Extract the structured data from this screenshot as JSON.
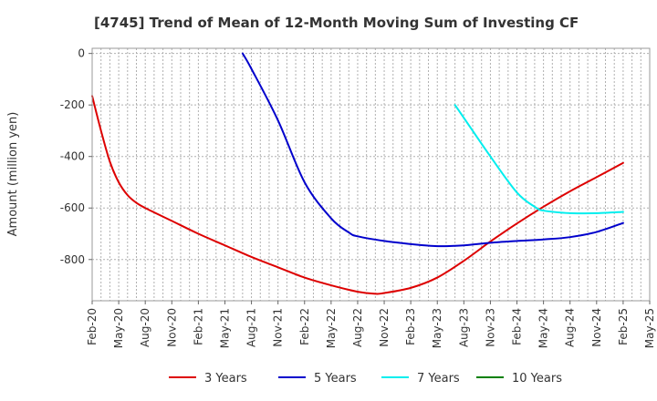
{
  "chart_data": {
    "type": "line",
    "title": "[4745]  Trend of Mean of 12-Month Moving Sum of Investing CF",
    "ylabel": "Amount (million yen)",
    "xlabel": "",
    "ylim": [
      -960,
      20
    ],
    "yticks": [
      0,
      -200,
      -400,
      -600,
      -800
    ],
    "ytick_labels": [
      "0",
      "-200",
      "-400",
      "-600",
      "-800"
    ],
    "x_start": "Feb-20",
    "x_end": "May-25",
    "xtick_labels": [
      "Feb-20",
      "May-20",
      "Aug-20",
      "Nov-20",
      "Feb-21",
      "May-21",
      "Aug-21",
      "Nov-21",
      "Feb-22",
      "May-22",
      "Aug-22",
      "Nov-22",
      "Feb-23",
      "May-23",
      "Aug-23",
      "Nov-23",
      "Feb-24",
      "May-24",
      "Aug-24",
      "Nov-24",
      "Feb-25",
      "May-25"
    ],
    "grid": true,
    "legend_position": "bottom",
    "series": [
      {
        "name": "3 Years",
        "color": "#dd0000",
        "x": [
          "Feb-20",
          "Mar-20",
          "Apr-20",
          "May-20",
          "Jun-20",
          "Jul-20",
          "Aug-20",
          "Nov-20",
          "Feb-21",
          "May-21",
          "Aug-21",
          "Nov-21",
          "Feb-22",
          "May-22",
          "Aug-22",
          "Oct-22",
          "Nov-22",
          "Feb-23",
          "May-23",
          "Aug-23",
          "Nov-23",
          "Feb-24",
          "May-24",
          "Aug-24",
          "Nov-24",
          "Feb-25"
        ],
        "values": [
          -165,
          -300,
          -420,
          -500,
          -550,
          -580,
          -600,
          -650,
          -700,
          -745,
          -790,
          -830,
          -870,
          -900,
          -925,
          -933,
          -930,
          -910,
          -870,
          -805,
          -730,
          -660,
          -595,
          -535,
          -480,
          -425
        ]
      },
      {
        "name": "5 Years",
        "color": "#0000cc",
        "x": [
          "Jul-21",
          "Aug-21",
          "Nov-21",
          "Feb-22",
          "May-22",
          "Jul-22",
          "Aug-22",
          "Nov-22",
          "Feb-23",
          "May-23",
          "Aug-23",
          "Nov-23",
          "Feb-24",
          "May-24",
          "Aug-24",
          "Nov-24",
          "Feb-25"
        ],
        "values": [
          0,
          -60,
          -260,
          -500,
          -640,
          -695,
          -710,
          -728,
          -740,
          -748,
          -745,
          -735,
          -728,
          -722,
          -713,
          -693,
          -658
        ]
      },
      {
        "name": "7 Years",
        "color": "#00eeee",
        "x": [
          "Jul-23",
          "Aug-23",
          "Nov-23",
          "Feb-24",
          "Apr-24",
          "May-24",
          "Aug-24",
          "Nov-24",
          "Feb-25"
        ],
        "values": [
          -200,
          -250,
          -400,
          -540,
          -595,
          -610,
          -620,
          -620,
          -615
        ]
      },
      {
        "name": "10 Years",
        "color": "#008000",
        "x": [],
        "values": []
      }
    ]
  }
}
